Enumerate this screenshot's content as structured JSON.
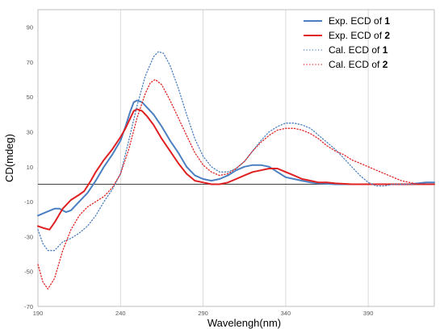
{
  "chart_data": {
    "type": "line",
    "xlabel": "Wavelengh(nm)",
    "ylabel": "CD(mdeg)",
    "xlim": [
      190,
      430
    ],
    "ylim": [
      -70,
      100
    ],
    "x_ticks": [
      190,
      240,
      290,
      340,
      390
    ],
    "y_ticks": [
      -70,
      -50,
      -30,
      -10,
      10,
      30,
      50,
      70,
      90
    ],
    "grid": "vertical",
    "legend_position": "top-right",
    "series": [
      {
        "name": "Exp. ECD of ",
        "name_bold": "1",
        "style": "solid",
        "color": "#4a7fc1",
        "points": [
          [
            190,
            -18
          ],
          [
            195,
            -16
          ],
          [
            200,
            -14
          ],
          [
            203,
            -14
          ],
          [
            207,
            -16
          ],
          [
            210,
            -15
          ],
          [
            215,
            -10
          ],
          [
            220,
            -5
          ],
          [
            225,
            2
          ],
          [
            230,
            10
          ],
          [
            235,
            17
          ],
          [
            240,
            25
          ],
          [
            243,
            33
          ],
          [
            246,
            42
          ],
          [
            248,
            47
          ],
          [
            250,
            48
          ],
          [
            253,
            47
          ],
          [
            256,
            44
          ],
          [
            260,
            40
          ],
          [
            265,
            33
          ],
          [
            270,
            25
          ],
          [
            275,
            18
          ],
          [
            280,
            10
          ],
          [
            285,
            5
          ],
          [
            290,
            3
          ],
          [
            295,
            2
          ],
          [
            300,
            3
          ],
          [
            305,
            5
          ],
          [
            310,
            8
          ],
          [
            315,
            10
          ],
          [
            320,
            11
          ],
          [
            325,
            11
          ],
          [
            330,
            10
          ],
          [
            335,
            7
          ],
          [
            340,
            4
          ],
          [
            345,
            3
          ],
          [
            350,
            2
          ],
          [
            355,
            1
          ],
          [
            360,
            0.5
          ],
          [
            370,
            0
          ],
          [
            380,
            0
          ],
          [
            390,
            0
          ],
          [
            400,
            0
          ],
          [
            410,
            0
          ],
          [
            415,
            0
          ],
          [
            420,
            0.5
          ],
          [
            425,
            1
          ],
          [
            430,
            1
          ]
        ]
      },
      {
        "name": "Exp. ECD of ",
        "name_bold": "2",
        "style": "solid",
        "color": "#e02020",
        "points": [
          [
            190,
            -24
          ],
          [
            193,
            -25
          ],
          [
            197,
            -26
          ],
          [
            200,
            -22
          ],
          [
            205,
            -14
          ],
          [
            210,
            -9
          ],
          [
            215,
            -6
          ],
          [
            218,
            -4
          ],
          [
            222,
            2
          ],
          [
            225,
            7
          ],
          [
            230,
            14
          ],
          [
            235,
            20
          ],
          [
            240,
            27
          ],
          [
            243,
            32
          ],
          [
            246,
            38
          ],
          [
            248,
            42
          ],
          [
            250,
            43
          ],
          [
            253,
            42
          ],
          [
            256,
            39
          ],
          [
            260,
            34
          ],
          [
            265,
            26
          ],
          [
            270,
            19
          ],
          [
            275,
            12
          ],
          [
            280,
            6
          ],
          [
            285,
            2
          ],
          [
            290,
            1
          ],
          [
            295,
            0
          ],
          [
            300,
            0
          ],
          [
            305,
            1
          ],
          [
            310,
            3
          ],
          [
            315,
            5
          ],
          [
            320,
            7
          ],
          [
            325,
            8
          ],
          [
            330,
            9
          ],
          [
            335,
            9
          ],
          [
            340,
            7
          ],
          [
            345,
            5
          ],
          [
            350,
            3
          ],
          [
            355,
            2
          ],
          [
            360,
            1
          ],
          [
            365,
            1
          ],
          [
            370,
            0.5
          ],
          [
            380,
            0
          ],
          [
            390,
            0
          ],
          [
            400,
            0
          ],
          [
            410,
            0
          ],
          [
            420,
            0
          ],
          [
            430,
            0
          ]
        ]
      },
      {
        "name": "Cal. ECD of ",
        "name_bold": "1",
        "style": "dotted",
        "color": "#4a7fc1",
        "points": [
          [
            190,
            -26
          ],
          [
            193,
            -34
          ],
          [
            196,
            -38
          ],
          [
            200,
            -38
          ],
          [
            205,
            -33
          ],
          [
            210,
            -31
          ],
          [
            215,
            -28
          ],
          [
            220,
            -24
          ],
          [
            225,
            -18
          ],
          [
            230,
            -10
          ],
          [
            235,
            -3
          ],
          [
            240,
            6
          ],
          [
            245,
            25
          ],
          [
            250,
            45
          ],
          [
            255,
            62
          ],
          [
            260,
            73
          ],
          [
            263,
            76
          ],
          [
            266,
            75
          ],
          [
            270,
            68
          ],
          [
            275,
            55
          ],
          [
            280,
            40
          ],
          [
            285,
            26
          ],
          [
            290,
            16
          ],
          [
            295,
            10
          ],
          [
            300,
            7
          ],
          [
            305,
            7
          ],
          [
            310,
            9
          ],
          [
            315,
            13
          ],
          [
            320,
            19
          ],
          [
            325,
            25
          ],
          [
            330,
            30
          ],
          [
            335,
            33
          ],
          [
            340,
            35
          ],
          [
            345,
            35
          ],
          [
            350,
            34
          ],
          [
            355,
            32
          ],
          [
            360,
            28
          ],
          [
            365,
            24
          ],
          [
            370,
            20
          ],
          [
            375,
            15
          ],
          [
            380,
            10
          ],
          [
            385,
            5
          ],
          [
            390,
            1
          ],
          [
            395,
            -1
          ],
          [
            400,
            -1
          ],
          [
            405,
            0
          ],
          [
            410,
            0
          ],
          [
            420,
            0
          ],
          [
            430,
            0
          ]
        ]
      },
      {
        "name": "Cal. ECD of ",
        "name_bold": "2",
        "style": "dotted",
        "color": "#e02020",
        "points": [
          [
            190,
            -46
          ],
          [
            193,
            -56
          ],
          [
            196,
            -60
          ],
          [
            200,
            -54
          ],
          [
            205,
            -38
          ],
          [
            210,
            -26
          ],
          [
            215,
            -18
          ],
          [
            220,
            -13
          ],
          [
            225,
            -10
          ],
          [
            230,
            -7
          ],
          [
            235,
            -2
          ],
          [
            240,
            6
          ],
          [
            245,
            20
          ],
          [
            250,
            38
          ],
          [
            255,
            52
          ],
          [
            258,
            58
          ],
          [
            261,
            60
          ],
          [
            265,
            57
          ],
          [
            270,
            48
          ],
          [
            275,
            38
          ],
          [
            280,
            28
          ],
          [
            285,
            18
          ],
          [
            290,
            11
          ],
          [
            295,
            7
          ],
          [
            300,
            5
          ],
          [
            305,
            6
          ],
          [
            310,
            9
          ],
          [
            315,
            13
          ],
          [
            320,
            19
          ],
          [
            325,
            24
          ],
          [
            330,
            28
          ],
          [
            335,
            31
          ],
          [
            340,
            32
          ],
          [
            345,
            32
          ],
          [
            350,
            31
          ],
          [
            355,
            29
          ],
          [
            360,
            26
          ],
          [
            365,
            22
          ],
          [
            370,
            19
          ],
          [
            375,
            17
          ],
          [
            380,
            14
          ],
          [
            385,
            12
          ],
          [
            390,
            10
          ],
          [
            395,
            8
          ],
          [
            400,
            6
          ],
          [
            405,
            4
          ],
          [
            410,
            2
          ],
          [
            415,
            1
          ],
          [
            420,
            0
          ],
          [
            430,
            0
          ]
        ]
      }
    ]
  }
}
